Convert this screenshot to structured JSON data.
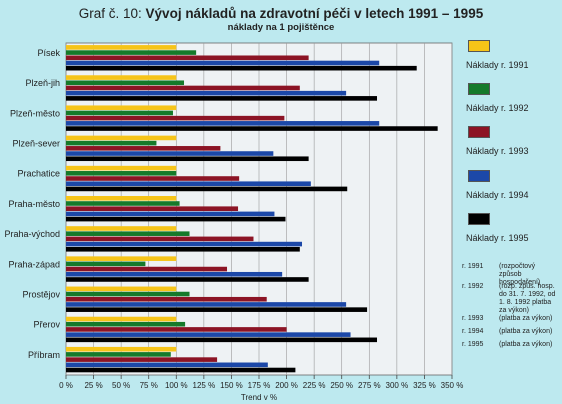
{
  "title_prefix": "Graf č. 10: ",
  "title_main": "Vývoj nákladů na zdravotní péči v letech 1991 – 1995",
  "subtitle": "náklady na 1 pojištěnce",
  "chart_data": {
    "type": "bar",
    "orientation": "horizontal",
    "xlabel": "Trend v %",
    "xlim": [
      0,
      350
    ],
    "x_tick_step": 25,
    "grid": "vertical",
    "legend_position": "right",
    "categories": [
      "Písek",
      "Plzeň-jih",
      "Plzeň-město",
      "Plzeň-sever",
      "Prachatice",
      "Praha-město",
      "Praha-východ",
      "Praha-západ",
      "Prostějov",
      "Přerov",
      "Příbram"
    ],
    "series": [
      {
        "name": "Náklady r. 1991",
        "color": "#f6c418",
        "values": [
          100,
          100,
          100,
          100,
          100,
          100,
          100,
          100,
          100,
          100,
          100
        ]
      },
      {
        "name": "Náklady r. 1992",
        "color": "#157a2a",
        "values": [
          118,
          107,
          97,
          82,
          100,
          103,
          112,
          72,
          112,
          108,
          95
        ]
      },
      {
        "name": "Náklady r. 1993",
        "color": "#8c1424",
        "values": [
          220,
          212,
          198,
          140,
          157,
          156,
          170,
          146,
          182,
          200,
          137
        ]
      },
      {
        "name": "Náklady r. 1994",
        "color": "#1c48a8",
        "values": [
          284,
          254,
          284,
          188,
          222,
          189,
          214,
          196,
          254,
          258,
          183
        ]
      },
      {
        "name": "Náklady r. 1995",
        "color": "#000000",
        "values": [
          318,
          282,
          337,
          220,
          255,
          199,
          212,
          220,
          273,
          282,
          208
        ]
      }
    ]
  },
  "x_tick_labels": [
    "0 %",
    "25 %",
    "50 %",
    "75 %",
    "100 %",
    "125 %",
    "150 %",
    "175 %",
    "200 %",
    "225 %",
    "250 %",
    "275 %",
    "300 %",
    "325 %",
    "350 %"
  ],
  "notes": [
    {
      "key": "r. 1991",
      "text": "(rozpočtový způsob hospodaření)"
    },
    {
      "key": "r. 1992",
      "text": "(rozp. způs. hosp. do 31. 7. 1992, od 1. 8. 1992 platba za výkon)"
    },
    {
      "key": "r. 1993",
      "text": "(platba za výkon)"
    },
    {
      "key": "r. 1994",
      "text": "(platba za výkon)"
    },
    {
      "key": "r. 1995",
      "text": "(platba za výkon)"
    }
  ]
}
